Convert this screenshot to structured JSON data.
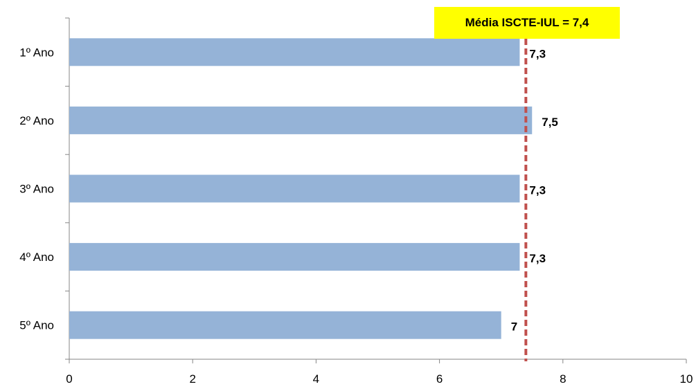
{
  "chart_data": {
    "type": "bar",
    "orientation": "horizontal",
    "categories": [
      "1º Ano",
      "2º Ano",
      "3º Ano",
      "4º Ano",
      "5º Ano"
    ],
    "values": [
      7.3,
      7.5,
      7.3,
      7.3,
      7.0
    ],
    "data_labels": [
      "7,3",
      "7,5",
      "7,3",
      "7,3",
      "7"
    ],
    "xlim": [
      0,
      10
    ],
    "x_ticks": [
      0,
      2,
      4,
      6,
      8,
      10
    ],
    "x_tick_labels": [
      "0",
      "2",
      "4",
      "6",
      "8",
      "10"
    ],
    "grid": false,
    "reference_line": {
      "value": 7.4,
      "label": "Média ISCTE-IUL = 7,4",
      "style": "dashed"
    }
  },
  "colors": {
    "bar": "#95b3d7",
    "reference_line": "#c0504d",
    "reference_label_bg": "#ffff00",
    "axis": "#868686"
  }
}
